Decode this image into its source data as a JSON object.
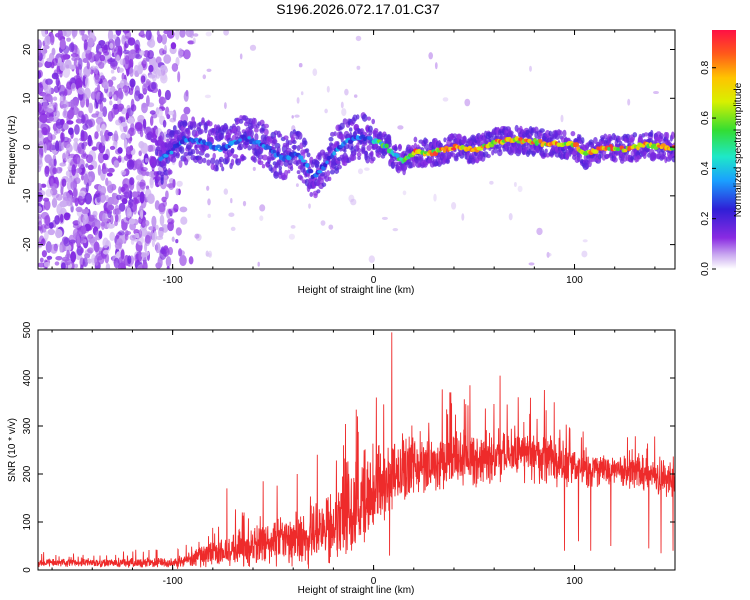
{
  "title": "S196.2026.072.17.01.C37",
  "colors": {
    "snr_line": "#ee2b2b",
    "frame": "#000000",
    "background": "#ffffff"
  },
  "chart_data": [
    {
      "type": "heatmap",
      "name": "spectrogram",
      "xlabel": "Height of straight line (km)",
      "ylabel": "Frequency (Hz)",
      "xlim": [
        -167,
        150
      ],
      "ylim": [
        -25,
        24
      ],
      "x_ticks": [
        -100,
        0,
        100
      ],
      "y_ticks": [
        -20,
        -10,
        0,
        10,
        20
      ],
      "x_tick_labels": [
        "-100",
        "0",
        "100"
      ],
      "y_tick_labels": [
        "-20",
        "-10",
        "0",
        "10",
        "20"
      ],
      "colorbar": {
        "label": "Normalized spectral amplitude",
        "range": [
          0,
          0.95
        ],
        "ticks": [
          0,
          0.2,
          0.4,
          0.6,
          0.8
        ],
        "tick_labels": [
          "0.0",
          "0.2",
          "0.4",
          "0.6",
          "0.8"
        ],
        "colormap": "rainbow (white → violet → blue → cyan → green → yellow → orange → red)"
      },
      "ridge_track": [
        {
          "x": -105,
          "y": -2.5
        },
        {
          "x": -95,
          "y": 1.5
        },
        {
          "x": -85,
          "y": 1.0
        },
        {
          "x": -75,
          "y": -0.5
        },
        {
          "x": -65,
          "y": 2.0
        },
        {
          "x": -55,
          "y": 0.5
        },
        {
          "x": -45,
          "y": -2.5
        },
        {
          "x": -38,
          "y": -1.0
        },
        {
          "x": -30,
          "y": -6.0
        },
        {
          "x": -25,
          "y": -4.0
        },
        {
          "x": -15,
          "y": 1.0
        },
        {
          "x": -5,
          "y": 2.0
        },
        {
          "x": 5,
          "y": 0.5
        },
        {
          "x": 10,
          "y": -1.5
        },
        {
          "x": 15,
          "y": -3.0
        },
        {
          "x": 20,
          "y": -1.0
        },
        {
          "x": 30,
          "y": -1.2
        },
        {
          "x": 40,
          "y": 0.0
        },
        {
          "x": 50,
          "y": -0.5
        },
        {
          "x": 60,
          "y": 1.0
        },
        {
          "x": 70,
          "y": 1.5
        },
        {
          "x": 80,
          "y": 1.0
        },
        {
          "x": 90,
          "y": 0.5
        },
        {
          "x": 100,
          "y": 0.5
        },
        {
          "x": 105,
          "y": -1.5
        },
        {
          "x": 115,
          "y": 0.0
        },
        {
          "x": 125,
          "y": -0.5
        },
        {
          "x": 135,
          "y": 0.5
        },
        {
          "x": 145,
          "y": 0.0
        }
      ]
    },
    {
      "type": "line",
      "name": "snr",
      "xlabel": "Height of straight line (km)",
      "ylabel": "SNR (10 * v/v)",
      "xlim": [
        -167,
        150
      ],
      "ylim": [
        0,
        500
      ],
      "x_ticks": [
        -100,
        0,
        100
      ],
      "y_ticks": [
        0,
        100,
        200,
        300,
        400,
        500
      ],
      "x_tick_labels": [
        "-100",
        "0",
        "100"
      ],
      "y_tick_labels": [
        "0",
        "100",
        "200",
        "300",
        "400",
        "500"
      ],
      "series": [
        {
          "name": "SNR",
          "envelope_x": [
            -167,
            -140,
            -120,
            -100,
            -90,
            -80,
            -70,
            -60,
            -50,
            -40,
            -30,
            -20,
            -15,
            -10,
            -5,
            0,
            5,
            10,
            20,
            30,
            40,
            50,
            60,
            70,
            80,
            90,
            100,
            110,
            120,
            130,
            140,
            150
          ],
          "envelope_base": [
            15,
            15,
            15,
            15,
            25,
            35,
            45,
            50,
            55,
            65,
            75,
            90,
            105,
            130,
            150,
            170,
            185,
            200,
            215,
            225,
            230,
            230,
            235,
            240,
            235,
            225,
            215,
            210,
            205,
            200,
            195,
            185
          ],
          "envelope_noise": [
            8,
            8,
            10,
            12,
            18,
            28,
            38,
            40,
            45,
            55,
            70,
            75,
            80,
            85,
            90,
            90,
            85,
            80,
            60,
            55,
            55,
            55,
            55,
            55,
            55,
            50,
            45,
            40,
            35,
            35,
            35,
            35
          ],
          "spikes": [
            {
              "x": 9,
              "y": 495
            },
            {
              "x": 63,
              "y": 405
            },
            {
              "x": 48,
              "y": 385
            },
            {
              "x": 5,
              "y": 345
            },
            {
              "x": 85,
              "y": 375
            },
            {
              "x": 38,
              "y": 370
            },
            {
              "x": 72,
              "y": 360
            },
            {
              "x": -73,
              "y": 170
            },
            {
              "x": -55,
              "y": 185
            },
            {
              "x": -38,
              "y": 200
            },
            {
              "x": -28,
              "y": 240
            },
            {
              "x": -15,
              "y": 260
            },
            {
              "x": -8,
              "y": 320
            },
            {
              "x": 95,
              "y": 350
            }
          ],
          "dips": [
            {
              "x": 8,
              "y": 30
            },
            {
              "x": 95,
              "y": 40
            },
            {
              "x": 108,
              "y": 40
            },
            {
              "x": 118,
              "y": 50
            },
            {
              "x": 137,
              "y": 45
            },
            {
              "x": 143,
              "y": 35
            },
            {
              "x": 149,
              "y": 40
            },
            {
              "x": 102,
              "y": 60
            }
          ]
        }
      ]
    }
  ]
}
